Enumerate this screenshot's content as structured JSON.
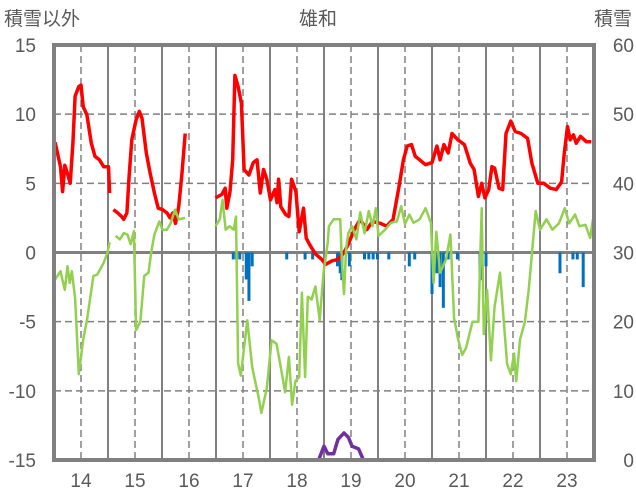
{
  "chart_data": {
    "type": "line",
    "title": "雄和",
    "ylabel_left": "積雪以外",
    "ylabel_right": "積雪",
    "xlim": [
      13.5,
      23.5
    ],
    "ylim_left": [
      -15,
      15
    ],
    "ylim_right": [
      0,
      60
    ],
    "x_ticks": [
      14,
      15,
      16,
      17,
      18,
      19,
      20,
      21,
      22,
      23
    ],
    "x_tick_labels": [
      "14",
      "15",
      "16",
      "17",
      "18",
      "19",
      "20",
      "21",
      "22",
      "23"
    ],
    "y_ticks_left": [
      15,
      10,
      5,
      0,
      -5,
      -10,
      -15
    ],
    "y_tick_labels_left": [
      "15",
      "10",
      "5",
      "0",
      "-5",
      "-10",
      "-15"
    ],
    "y_ticks_right": [
      60,
      50,
      40,
      30,
      20,
      10,
      0
    ],
    "y_tick_labels_right": [
      "60",
      "50",
      "40",
      "30",
      "20",
      "10",
      "0"
    ],
    "grid": true,
    "colors": {
      "red": "#ff0000",
      "green": "#92d050",
      "blue": "#0070c0",
      "purple": "#7030a0",
      "frame": "#808080"
    },
    "series": [
      {
        "name": "red",
        "axis": "left",
        "color": "#ff0000",
        "points": [
          [
            13.52,
            7.96
          ],
          [
            13.62,
            6.2
          ],
          [
            13.66,
            4.4
          ],
          [
            13.7,
            6.3
          ],
          [
            13.75,
            5.7
          ],
          [
            13.8,
            5.0
          ],
          [
            13.85,
            7.9
          ],
          [
            13.89,
            11.3
          ],
          [
            13.96,
            12.0
          ],
          [
            14.0,
            12.1
          ],
          [
            14.04,
            10.55
          ],
          [
            14.11,
            9.95
          ],
          [
            14.19,
            7.9
          ],
          [
            14.26,
            6.95
          ],
          [
            14.34,
            6.7
          ],
          [
            14.42,
            6.2
          ],
          [
            14.51,
            6.2
          ],
          [
            14.53,
            4.3
          ],
          null,
          [
            14.6,
            3.1
          ],
          [
            14.68,
            2.86
          ],
          [
            14.75,
            2.6
          ],
          [
            14.79,
            2.4
          ],
          [
            14.85,
            2.86
          ],
          [
            14.89,
            5.5
          ],
          [
            14.94,
            8.15
          ],
          [
            15.02,
            9.6
          ],
          [
            15.08,
            10.2
          ],
          [
            15.13,
            9.7
          ],
          [
            15.21,
            7.2
          ],
          [
            15.28,
            5.75
          ],
          [
            15.36,
            4.3
          ],
          [
            15.43,
            3.2
          ],
          [
            15.51,
            3.1
          ],
          [
            15.59,
            2.86
          ],
          [
            15.65,
            2.5
          ],
          [
            15.7,
            2.86
          ],
          [
            15.75,
            2.1
          ],
          [
            15.81,
            3.3
          ],
          [
            15.87,
            5.75
          ],
          [
            15.93,
            8.6
          ],
          null,
          [
            16.49,
            3.95
          ],
          [
            16.61,
            4.2
          ],
          [
            16.67,
            4.65
          ],
          [
            16.7,
            3.2
          ],
          [
            16.76,
            4.4
          ],
          [
            16.81,
            6.7
          ],
          [
            16.85,
            12.8
          ],
          [
            16.91,
            12.0
          ],
          [
            16.97,
            10.8
          ],
          [
            17.02,
            6.0
          ],
          [
            17.11,
            5.6
          ],
          [
            17.19,
            6.5
          ],
          [
            17.26,
            6.7
          ],
          [
            17.32,
            4.3
          ],
          [
            17.38,
            6.0
          ],
          [
            17.44,
            5.3
          ],
          [
            17.51,
            3.8
          ],
          [
            17.59,
            4.55
          ],
          [
            17.63,
            3.6
          ],
          [
            17.66,
            5.3
          ],
          [
            17.7,
            3.3
          ],
          [
            17.79,
            2.75
          ],
          [
            17.85,
            2.6
          ],
          [
            17.9,
            5.3
          ],
          [
            17.98,
            4.4
          ],
          [
            18.04,
            1.5
          ],
          [
            18.12,
            3.2
          ],
          [
            18.17,
            1.05
          ],
          [
            18.23,
            0.6
          ],
          [
            18.34,
            -0.1
          ],
          [
            18.46,
            -0.5
          ],
          [
            18.53,
            -0.85
          ],
          [
            18.65,
            -0.6
          ],
          [
            18.76,
            -0.5
          ],
          [
            18.87,
            0.0
          ],
          [
            18.95,
            0.6
          ],
          [
            19.06,
            1.65
          ],
          [
            19.17,
            2.4
          ],
          [
            19.29,
            1.65
          ],
          [
            19.4,
            2.25
          ],
          [
            19.55,
            2.1
          ],
          [
            19.66,
            1.9
          ],
          [
            19.78,
            2.4
          ],
          [
            19.89,
            4.8
          ],
          [
            19.97,
            6.7
          ],
          [
            20.04,
            7.7
          ],
          [
            20.12,
            7.8
          ],
          [
            20.19,
            6.95
          ],
          [
            20.27,
            6.7
          ],
          [
            20.38,
            6.35
          ],
          [
            20.5,
            6.5
          ],
          [
            20.59,
            7.7
          ],
          [
            20.65,
            6.7
          ],
          [
            20.72,
            7.8
          ],
          [
            20.8,
            7.2
          ],
          [
            20.87,
            8.6
          ],
          [
            20.98,
            8.15
          ],
          [
            21.1,
            7.8
          ],
          [
            21.21,
            6.45
          ],
          [
            21.28,
            6.0
          ],
          [
            21.36,
            4.05
          ],
          [
            21.42,
            5.0
          ],
          [
            21.48,
            3.95
          ],
          [
            21.55,
            4.55
          ],
          [
            21.61,
            6.2
          ],
          [
            21.66,
            6.1
          ],
          [
            21.74,
            4.65
          ],
          [
            21.81,
            4.55
          ],
          [
            21.87,
            8.6
          ],
          [
            21.96,
            9.5
          ],
          [
            22.04,
            8.75
          ],
          [
            22.15,
            8.6
          ],
          [
            22.27,
            8.25
          ],
          [
            22.35,
            6.45
          ],
          [
            22.46,
            5.0
          ],
          [
            22.57,
            5.0
          ],
          [
            22.69,
            4.65
          ],
          [
            22.8,
            4.55
          ],
          [
            22.9,
            5.1
          ],
          [
            22.95,
            7.2
          ],
          [
            23.01,
            9.1
          ],
          [
            23.06,
            8.15
          ],
          [
            23.12,
            8.5
          ],
          [
            23.17,
            7.9
          ],
          [
            23.25,
            8.4
          ],
          [
            23.36,
            8.0
          ],
          [
            23.45,
            8.0
          ]
        ]
      },
      {
        "name": "green",
        "axis": "left",
        "color": "#92d050",
        "points": [
          [
            13.52,
            -1.95
          ],
          [
            13.62,
            -1.35
          ],
          [
            13.7,
            -2.7
          ],
          [
            13.75,
            -1.0
          ],
          [
            13.79,
            -2.2
          ],
          [
            13.83,
            -1.35
          ],
          [
            13.89,
            -3.3
          ],
          [
            13.96,
            -8.8
          ],
          [
            14.04,
            -6.3
          ],
          [
            14.11,
            -4.9
          ],
          [
            14.23,
            -1.7
          ],
          [
            14.3,
            -1.6
          ],
          [
            14.42,
            -0.75
          ],
          [
            14.49,
            0.0
          ],
          [
            14.53,
            0.75
          ],
          null,
          [
            14.64,
            1.2
          ],
          [
            14.72,
            0.95
          ],
          [
            14.79,
            1.4
          ],
          [
            14.86,
            1.3
          ],
          [
            14.92,
            0.6
          ],
          [
            14.98,
            1.55
          ],
          [
            15.02,
            -5.6
          ],
          [
            15.1,
            -5.0
          ],
          [
            15.17,
            -1.7
          ],
          [
            15.25,
            -1.45
          ],
          [
            15.3,
            0.0
          ],
          [
            15.36,
            1.3
          ],
          [
            15.45,
            2.25
          ],
          [
            15.51,
            1.65
          ],
          [
            15.59,
            1.65
          ],
          [
            15.66,
            2.1
          ],
          [
            15.74,
            3.1
          ],
          [
            15.81,
            2.4
          ],
          [
            15.93,
            2.5
          ],
          null,
          [
            16.49,
            1.9
          ],
          [
            16.57,
            2.4
          ],
          [
            16.62,
            3.8
          ],
          [
            16.68,
            1.65
          ],
          [
            16.75,
            1.9
          ],
          [
            16.83,
            1.65
          ],
          [
            16.87,
            2.6
          ],
          [
            16.91,
            -8.0
          ],
          [
            16.96,
            -8.9
          ],
          [
            17.08,
            -4.9
          ],
          [
            17.17,
            -8.3
          ],
          [
            17.29,
            -10.5
          ],
          [
            17.34,
            -11.6
          ],
          [
            17.44,
            -9.8
          ],
          [
            17.53,
            -6.35
          ],
          [
            17.62,
            -6.6
          ],
          [
            17.7,
            -8.3
          ],
          [
            17.78,
            -10.1
          ],
          [
            17.85,
            -7.55
          ],
          [
            17.91,
            -11.0
          ],
          [
            17.97,
            -9.3
          ],
          [
            18.04,
            -9.0
          ],
          [
            18.09,
            -2.9
          ],
          [
            18.15,
            -9.0
          ],
          [
            18.2,
            -3.2
          ],
          [
            18.27,
            -3.4
          ],
          [
            18.34,
            -2.45
          ],
          [
            18.42,
            -4.9
          ],
          [
            18.49,
            -1.45
          ],
          [
            18.57,
            0.75
          ],
          [
            18.59,
            1.9
          ],
          [
            18.68,
            2.4
          ],
          [
            18.8,
            2.4
          ],
          [
            18.83,
            -0.5
          ],
          [
            18.87,
            -3.0
          ],
          [
            18.91,
            0.25
          ],
          [
            18.95,
            1.4
          ],
          [
            19.02,
            1.9
          ],
          [
            19.1,
            0.95
          ],
          [
            19.17,
            2.9
          ],
          [
            19.25,
            1.4
          ],
          [
            19.33,
            3.0
          ],
          [
            19.4,
            1.9
          ],
          [
            19.46,
            3.2
          ],
          [
            19.51,
            1.2
          ],
          [
            19.63,
            1.65
          ],
          [
            19.74,
            2.15
          ],
          [
            19.85,
            2.25
          ],
          [
            19.93,
            3.35
          ],
          [
            20.0,
            2.05
          ],
          [
            20.08,
            2.75
          ],
          [
            20.16,
            2.15
          ],
          [
            20.27,
            2.4
          ],
          [
            20.38,
            3.2
          ],
          [
            20.48,
            2.15
          ],
          [
            20.53,
            -2.2
          ],
          [
            20.58,
            1.5
          ],
          [
            20.65,
            -1.45
          ],
          [
            20.76,
            -0.5
          ],
          [
            20.84,
            1.3
          ],
          [
            20.91,
            -4.75
          ],
          [
            20.98,
            -6.2
          ],
          [
            21.06,
            -7.4
          ],
          [
            21.13,
            -6.9
          ],
          [
            21.25,
            -5.0
          ],
          [
            21.36,
            -5.0
          ],
          [
            21.42,
            3.2
          ],
          [
            21.46,
            -5.9
          ],
          [
            21.52,
            -2.7
          ],
          [
            21.59,
            -7.8
          ],
          [
            21.66,
            -3.9
          ],
          [
            21.76,
            -1.45
          ],
          [
            21.89,
            -8.05
          ],
          [
            21.96,
            -8.8
          ],
          [
            22.02,
            -7.3
          ],
          [
            22.06,
            -9.3
          ],
          [
            22.13,
            -6.3
          ],
          [
            22.22,
            -5.0
          ],
          [
            22.29,
            -2.7
          ],
          [
            22.35,
            -0.1
          ],
          [
            22.42,
            3.0
          ],
          [
            22.5,
            1.65
          ],
          [
            22.62,
            2.4
          ],
          [
            22.73,
            1.65
          ],
          [
            22.85,
            2.1
          ],
          [
            22.96,
            3.2
          ],
          [
            23.04,
            2.1
          ],
          [
            23.15,
            2.75
          ],
          [
            23.23,
            1.9
          ],
          [
            23.34,
            2.0
          ],
          [
            23.43,
            1.05
          ],
          [
            23.48,
            2.4
          ]
        ]
      },
      {
        "name": "blue",
        "type": "bar",
        "axis": "left",
        "color": "#0070c0",
        "points": [
          [
            16.82,
            -0.5
          ],
          [
            16.88,
            -0.5
          ],
          [
            16.94,
            -0.5
          ],
          [
            17.06,
            -1.95
          ],
          [
            17.11,
            -3.5
          ],
          [
            17.17,
            -1.0
          ],
          [
            17.81,
            -0.5
          ],
          [
            18.15,
            -0.5
          ],
          [
            18.29,
            -0.5
          ],
          [
            18.75,
            -1.0
          ],
          [
            18.8,
            -1.5
          ],
          [
            18.83,
            -2.0
          ],
          [
            18.97,
            -1.0
          ],
          [
            19.25,
            -0.5
          ],
          [
            19.33,
            -0.5
          ],
          [
            19.41,
            -0.5
          ],
          [
            19.49,
            -0.5
          ],
          [
            19.7,
            -0.5
          ],
          [
            20.08,
            -1.0
          ],
          [
            20.18,
            -0.5
          ],
          [
            20.5,
            -3.0
          ],
          [
            20.59,
            -1.5
          ],
          [
            20.65,
            -2.5
          ],
          [
            20.71,
            -4.0
          ],
          [
            20.8,
            -0.5
          ],
          [
            20.97,
            -0.5
          ],
          [
            21.39,
            -2.0
          ],
          [
            21.5,
            -1.0
          ],
          [
            22.87,
            -1.5
          ],
          [
            23.11,
            -0.5
          ],
          [
            23.19,
            -0.5
          ],
          [
            23.3,
            -2.5
          ]
        ]
      },
      {
        "name": "purple",
        "axis": "right",
        "color": "#7030a0",
        "points": [
          [
            13.5,
            0
          ],
          [
            16.0,
            0
          ],
          null,
          [
            16.5,
            0
          ],
          [
            18.4,
            0
          ],
          [
            18.5,
            2.0
          ],
          [
            18.57,
            0.9
          ],
          [
            18.68,
            0.9
          ],
          [
            18.76,
            3.0
          ],
          [
            18.87,
            3.9
          ],
          [
            18.95,
            3.3
          ],
          [
            19.02,
            2.0
          ],
          [
            19.14,
            1.6
          ],
          [
            19.23,
            0
          ],
          [
            23.5,
            0
          ]
        ]
      }
    ]
  }
}
